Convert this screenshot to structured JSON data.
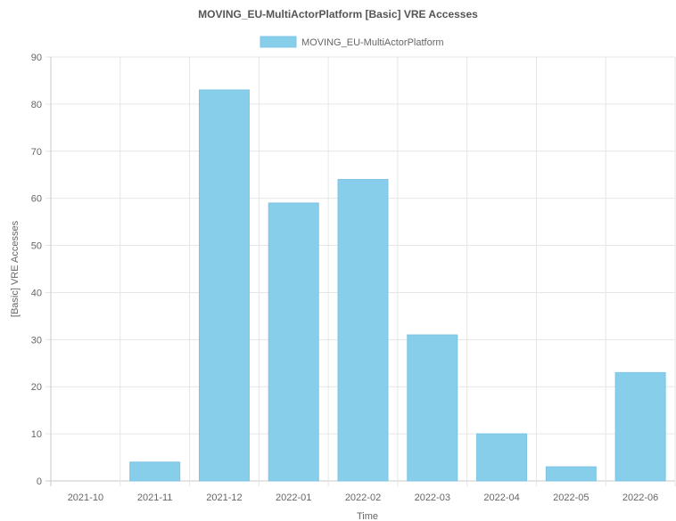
{
  "chart_data": {
    "type": "bar",
    "title": "MOVING_EU-MultiActorPlatform [Basic] VRE Accesses",
    "xlabel": "Time",
    "ylabel": "[Basic] VRE Accesses",
    "categories": [
      "2021-10",
      "2021-11",
      "2021-12",
      "2022-01",
      "2022-02",
      "2022-03",
      "2022-04",
      "2022-05",
      "2022-06"
    ],
    "series": [
      {
        "name": "MOVING_EU-MultiActorPlatform",
        "values": [
          0,
          4,
          83,
          59,
          64,
          31,
          10,
          3,
          23
        ]
      }
    ],
    "ylim": [
      0,
      90
    ],
    "yticks": [
      0,
      10,
      20,
      30,
      40,
      50,
      60,
      70,
      80,
      90
    ],
    "grid": true,
    "legend_position": "top",
    "colors": {
      "bar_fill": "#87ceeb",
      "bar_stroke": "#7ec4e4",
      "grid": "#e6e6e6",
      "axis": "#c8c8c8"
    }
  }
}
